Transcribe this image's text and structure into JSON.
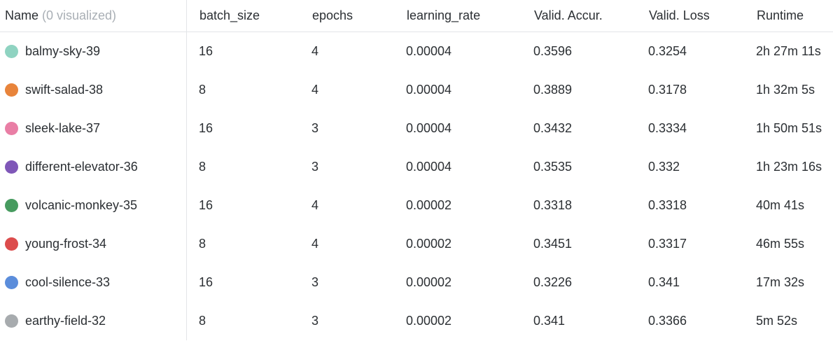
{
  "header": {
    "name": "Name",
    "visualized": "(0 visualized)",
    "batch_size": "batch_size",
    "epochs": "epochs",
    "learning_rate": "learning_rate",
    "valid_accuracy": "Valid. Accur.",
    "valid_loss": "Valid. Loss",
    "runtime": "Runtime"
  },
  "runs": [
    {
      "name": "balmy-sky-39",
      "color": "#8fd3c1",
      "batch_size": "16",
      "epochs": "4",
      "learning_rate": "0.00004",
      "valid_accuracy": "0.3596",
      "valid_loss": "0.3254",
      "runtime": "2h 27m 11s"
    },
    {
      "name": "swift-salad-38",
      "color": "#e8843b",
      "batch_size": "8",
      "epochs": "4",
      "learning_rate": "0.00004",
      "valid_accuracy": "0.3889",
      "valid_loss": "0.3178",
      "runtime": "1h 32m 5s"
    },
    {
      "name": "sleek-lake-37",
      "color": "#e97ea5",
      "batch_size": "16",
      "epochs": "3",
      "learning_rate": "0.00004",
      "valid_accuracy": "0.3432",
      "valid_loss": "0.3334",
      "runtime": "1h 50m 51s"
    },
    {
      "name": "different-elevator-36",
      "color": "#7f57b8",
      "batch_size": "8",
      "epochs": "3",
      "learning_rate": "0.00004",
      "valid_accuracy": "0.3535",
      "valid_loss": "0.332",
      "runtime": "1h 23m 16s"
    },
    {
      "name": "volcanic-monkey-35",
      "color": "#479b5f",
      "batch_size": "16",
      "epochs": "4",
      "learning_rate": "0.00002",
      "valid_accuracy": "0.3318",
      "valid_loss": "0.3318",
      "runtime": "40m 41s"
    },
    {
      "name": "young-frost-34",
      "color": "#dc4c4c",
      "batch_size": "8",
      "epochs": "4",
      "learning_rate": "0.00002",
      "valid_accuracy": "0.3451",
      "valid_loss": "0.3317",
      "runtime": "46m 55s"
    },
    {
      "name": "cool-silence-33",
      "color": "#5b8ddb",
      "batch_size": "16",
      "epochs": "3",
      "learning_rate": "0.00002",
      "valid_accuracy": "0.3226",
      "valid_loss": "0.341",
      "runtime": "17m 32s"
    },
    {
      "name": "earthy-field-32",
      "color": "#a7abae",
      "batch_size": "8",
      "epochs": "3",
      "learning_rate": "0.00002",
      "valid_accuracy": "0.341",
      "valid_loss": "0.3366",
      "runtime": "5m 52s"
    }
  ]
}
